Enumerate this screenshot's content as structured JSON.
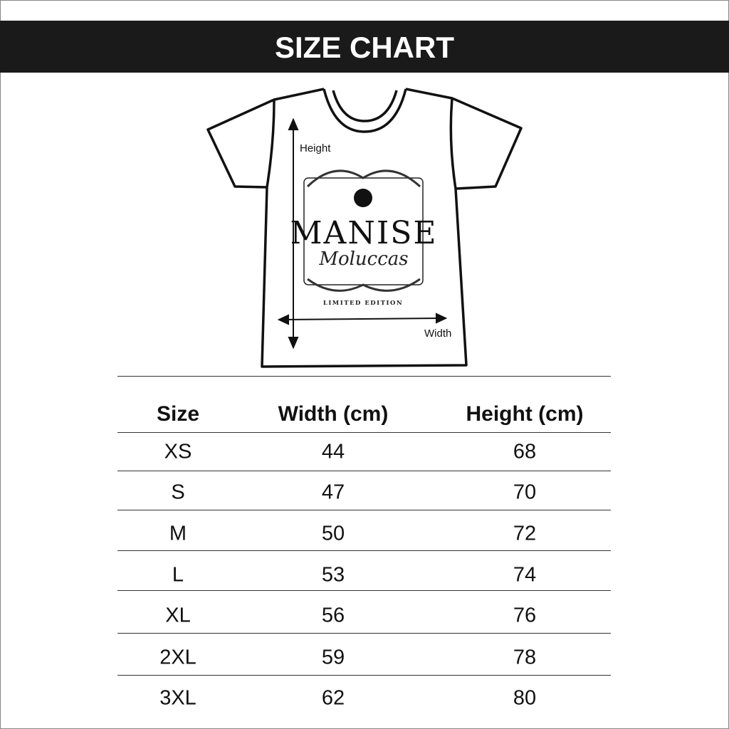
{
  "title": "SIZE CHART",
  "diagram": {
    "height_label": "Height",
    "width_label": "Width",
    "print": {
      "brand": "MANISE",
      "subtitle": "Moluccas",
      "tagline": "LIMITED EDITION"
    }
  },
  "table": {
    "headers": [
      "Size",
      "Width (cm)",
      "Height (cm)"
    ],
    "rows": [
      [
        "XS",
        "44",
        "68"
      ],
      [
        "S",
        "47",
        "70"
      ],
      [
        "M",
        "50",
        "72"
      ],
      [
        "L",
        "53",
        "74"
      ],
      [
        "XL",
        "56",
        "76"
      ],
      [
        "2XL",
        "59",
        "78"
      ],
      [
        "3XL",
        "62",
        "80"
      ]
    ]
  }
}
